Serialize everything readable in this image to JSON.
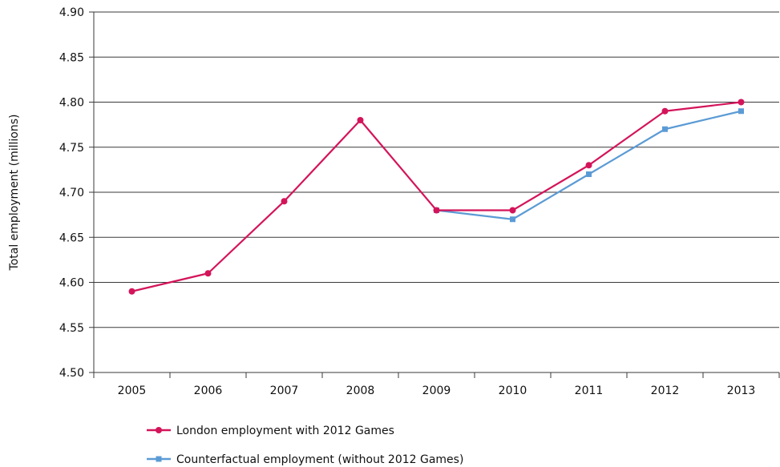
{
  "chart_data": {
    "type": "line",
    "title": "",
    "xlabel": "",
    "ylabel": "Total employment (millions)",
    "categories": [
      "2005",
      "2006",
      "2007",
      "2008",
      "2009",
      "2010",
      "2011",
      "2012",
      "2013"
    ],
    "ylim": [
      4.5,
      4.9
    ],
    "yticks": [
      "4.50",
      "4.55",
      "4.60",
      "4.65",
      "4.70",
      "4.75",
      "4.80",
      "4.85",
      "4.90"
    ],
    "grid": "horizontal",
    "legend_position": "bottom-left",
    "series": [
      {
        "name": "London employment with 2012 Games",
        "color": "#d4145a",
        "marker": "circle",
        "values": [
          4.59,
          4.61,
          4.69,
          4.78,
          4.68,
          4.68,
          4.73,
          4.79,
          4.8
        ]
      },
      {
        "name": "Counterfactual employment (without 2012 Games)",
        "color": "#5b9bd5",
        "marker": "square",
        "values": [
          null,
          null,
          null,
          null,
          4.68,
          4.67,
          4.72,
          4.77,
          4.79
        ]
      }
    ]
  }
}
